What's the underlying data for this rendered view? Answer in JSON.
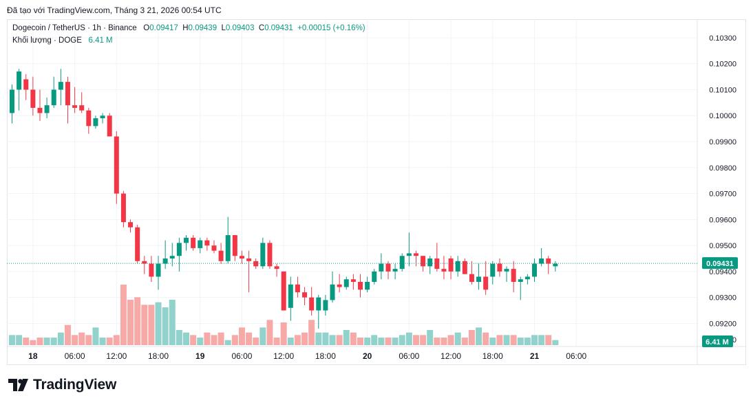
{
  "caption": "Đã tạo với TradingView.com, Tháng 3 21, 2026 00:54 UTC",
  "legend": {
    "symbol": "Dogecoin / TetherUS · 1h · Binance",
    "o_label": "O",
    "o": "0.09417",
    "h_label": "H",
    "h": "0.09439",
    "l_label": "L",
    "l": "0.09403",
    "c_label": "C",
    "c": "0.09431",
    "change": "+0.00015 (+0.16%)",
    "volume_label": "Khối lượng · DOGE",
    "volume_value": "6.41 M"
  },
  "brand": {
    "name": "TradingView",
    "logo_icon": "tradingview-logo-icon"
  },
  "colors": {
    "up": "#089981",
    "down": "#f23645",
    "up_volume": "#92d2cc",
    "down_volume": "#f7a9a7",
    "grid": "#f0f3fa",
    "axis_text": "#131722"
  },
  "chart_data": {
    "type": "candlestick",
    "ylim": [
      0.0909,
      0.1035
    ],
    "y_ticks": [
      "0.10300",
      "0.10200",
      "0.10100",
      "0.10000",
      "0.09900",
      "0.09800",
      "0.09700",
      "0.09600",
      "0.09500",
      "0.09400",
      "0.09300",
      "0.09200"
    ],
    "y_tick_values": [
      0.103,
      0.102,
      0.101,
      0.1,
      0.099,
      0.098,
      0.097,
      0.096,
      0.095,
      0.094,
      0.093,
      0.092
    ],
    "x_ticks": [
      {
        "label": "18",
        "index": 3,
        "bold": true
      },
      {
        "label": "06:00",
        "index": 9
      },
      {
        "label": "12:00",
        "index": 15
      },
      {
        "label": "18:00",
        "index": 21
      },
      {
        "label": "19",
        "index": 27,
        "bold": true
      },
      {
        "label": "06:00",
        "index": 33
      },
      {
        "label": "12:00",
        "index": 39
      },
      {
        "label": "18:00",
        "index": 45
      },
      {
        "label": "20",
        "index": 51,
        "bold": true
      },
      {
        "label": "06:00",
        "index": 57
      },
      {
        "label": "12:00",
        "index": 63
      },
      {
        "label": "18:00",
        "index": 69
      },
      {
        "label": "21",
        "index": 75,
        "bold": true
      },
      {
        "label": "06:00",
        "index": 81
      }
    ],
    "last_price": 0.09431,
    "last_price_label": "0.09431",
    "volume_label": "6.41 M",
    "volume_axis_partial_label": "0",
    "candles": [
      [
        0.1001,
        0.1012,
        0.0997,
        0.101
      ],
      [
        0.101,
        0.1018,
        0.1002,
        0.1017
      ],
      [
        0.1014,
        0.1016,
        0.1006,
        0.101
      ],
      [
        0.101,
        0.1015,
        0.1,
        0.1003
      ],
      [
        0.1003,
        0.101,
        0.0998,
        0.1001
      ],
      [
        0.1001,
        0.1007,
        0.0999,
        0.1004
      ],
      [
        0.1004,
        0.1015,
        0.1003,
        0.101
      ],
      [
        0.101,
        0.1018,
        0.1004,
        0.1013
      ],
      [
        0.1013,
        0.1015,
        0.0997,
        0.1004
      ],
      [
        0.1004,
        0.1011,
        0.1001,
        0.1003
      ],
      [
        0.1004,
        0.1009,
        0.1001,
        0.1002
      ],
      [
        0.1002,
        0.1003,
        0.0993,
        0.0996
      ],
      [
        0.0996,
        0.1,
        0.0995,
        0.0999
      ],
      [
        0.0999,
        0.1001,
        0.0997,
        0.1
      ],
      [
        0.1,
        0.1001,
        0.0993,
        0.0992
      ],
      [
        0.0992,
        0.0994,
        0.0966,
        0.097
      ],
      [
        0.097,
        0.0971,
        0.0957,
        0.0959
      ],
      [
        0.0959,
        0.096,
        0.0955,
        0.0957
      ],
      [
        0.0957,
        0.0958,
        0.0943,
        0.0944
      ],
      [
        0.0944,
        0.0946,
        0.0939,
        0.0943
      ],
      [
        0.0943,
        0.0946,
        0.0936,
        0.0938
      ],
      [
        0.0938,
        0.0946,
        0.0933,
        0.0943
      ],
      [
        0.0943,
        0.0952,
        0.0941,
        0.0945
      ],
      [
        0.0945,
        0.0951,
        0.0942,
        0.0946
      ],
      [
        0.0946,
        0.0953,
        0.094,
        0.0951
      ],
      [
        0.0951,
        0.0954,
        0.0948,
        0.0953
      ],
      [
        0.0953,
        0.0954,
        0.0948,
        0.0949
      ],
      [
        0.0949,
        0.0953,
        0.0947,
        0.0952
      ],
      [
        0.0952,
        0.0953,
        0.0948,
        0.095
      ],
      [
        0.095,
        0.0952,
        0.0947,
        0.0948
      ],
      [
        0.0948,
        0.0951,
        0.0943,
        0.0944
      ],
      [
        0.0944,
        0.0961,
        0.0943,
        0.0954
      ],
      [
        0.0954,
        0.0954,
        0.0944,
        0.0946
      ],
      [
        0.0946,
        0.0948,
        0.0943,
        0.0945
      ],
      [
        0.0945,
        0.0948,
        0.0932,
        0.0944
      ],
      [
        0.0944,
        0.0945,
        0.0941,
        0.0942
      ],
      [
        0.0942,
        0.0953,
        0.0941,
        0.0951
      ],
      [
        0.0951,
        0.0952,
        0.0941,
        0.0942
      ],
      [
        0.0942,
        0.0943,
        0.0938,
        0.0941
      ],
      [
        0.094,
        0.094,
        0.0925,
        0.0925
      ],
      [
        0.0926,
        0.0938,
        0.0921,
        0.0935
      ],
      [
        0.0935,
        0.0938,
        0.093,
        0.0932
      ],
      [
        0.0932,
        0.0934,
        0.0927,
        0.093
      ],
      [
        0.093,
        0.0934,
        0.0923,
        0.0925
      ],
      [
        0.0925,
        0.0931,
        0.0918,
        0.093
      ],
      [
        0.0925,
        0.0931,
        0.0923,
        0.0929
      ],
      [
        0.0929,
        0.094,
        0.0928,
        0.0935
      ],
      [
        0.0935,
        0.0939,
        0.0932,
        0.0934
      ],
      [
        0.0934,
        0.0938,
        0.0933,
        0.0937
      ],
      [
        0.0937,
        0.0939,
        0.0933,
        0.0936
      ],
      [
        0.0936,
        0.0939,
        0.093,
        0.0933
      ],
      [
        0.0933,
        0.0938,
        0.0932,
        0.0936
      ],
      [
        0.0936,
        0.0941,
        0.0935,
        0.094
      ],
      [
        0.094,
        0.0947,
        0.0937,
        0.0943
      ],
      [
        0.0943,
        0.0944,
        0.0937,
        0.094
      ],
      [
        0.094,
        0.0943,
        0.0937,
        0.0941
      ],
      [
        0.0941,
        0.0947,
        0.094,
        0.0946
      ],
      [
        0.0946,
        0.0955,
        0.0942,
        0.0947
      ],
      [
        0.0947,
        0.0948,
        0.0942,
        0.0946
      ],
      [
        0.0946,
        0.0946,
        0.094,
        0.0942
      ],
      [
        0.0942,
        0.0946,
        0.0939,
        0.0945
      ],
      [
        0.0945,
        0.0951,
        0.094,
        0.0941
      ],
      [
        0.0941,
        0.0946,
        0.0937,
        0.094
      ],
      [
        0.0945,
        0.0946,
        0.0937,
        0.094
      ],
      [
        0.094,
        0.0946,
        0.0938,
        0.0944
      ],
      [
        0.0944,
        0.0945,
        0.0939,
        0.0939
      ],
      [
        0.0939,
        0.0944,
        0.0935,
        0.0936
      ],
      [
        0.0936,
        0.0943,
        0.0933,
        0.0938
      ],
      [
        0.0938,
        0.0944,
        0.0931,
        0.0933
      ],
      [
        0.0938,
        0.0944,
        0.0935,
        0.0943
      ],
      [
        0.0943,
        0.0945,
        0.0938,
        0.094
      ],
      [
        0.094,
        0.0942,
        0.0936,
        0.0941
      ],
      [
        0.0941,
        0.0944,
        0.0932,
        0.0936
      ],
      [
        0.0936,
        0.0938,
        0.0929,
        0.0937
      ],
      [
        0.0937,
        0.0939,
        0.0935,
        0.0938
      ],
      [
        0.0938,
        0.0945,
        0.0936,
        0.0943
      ],
      [
        0.0943,
        0.0949,
        0.0942,
        0.0945
      ],
      [
        0.0945,
        0.0946,
        0.0939,
        0.0943
      ],
      [
        0.0942,
        0.0944,
        0.094,
        0.0943
      ]
    ],
    "volumes": [
      4,
      4,
      3,
      2,
      3,
      3,
      3,
      5,
      8,
      4,
      5,
      4,
      7,
      3,
      3,
      4,
      24,
      18,
      19,
      16,
      16,
      17,
      15,
      18,
      6,
      5,
      4,
      3,
      5,
      4,
      5,
      2,
      4,
      7,
      5,
      3,
      7,
      10,
      3,
      9,
      3,
      4,
      5,
      10,
      5,
      5,
      4,
      4,
      6,
      5,
      3,
      3,
      4,
      3,
      3,
      3,
      4,
      5,
      4,
      4,
      6,
      3,
      3,
      4,
      5,
      3,
      6,
      7,
      5,
      3,
      4,
      4,
      4,
      3,
      3,
      4,
      4,
      4,
      2
    ],
    "volume_max": 30
  }
}
